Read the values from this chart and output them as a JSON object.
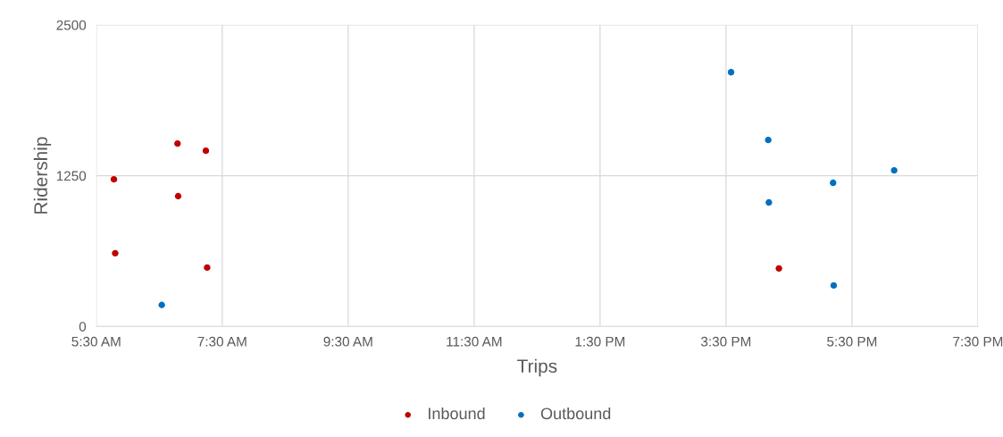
{
  "chart_data": {
    "type": "scatter",
    "xlabel": "Trips",
    "ylabel": "Ridership",
    "series": [
      {
        "name": "Inbound",
        "color": "#c00000",
        "x": [
          5.78,
          5.8,
          6.79,
          6.8,
          7.24,
          7.26,
          16.34
        ],
        "values": [
          1220,
          607,
          1516,
          1080,
          1457,
          488,
          481
        ]
      },
      {
        "name": "Outbound",
        "color": "#0070c0",
        "x": [
          6.54,
          15.58,
          16.17,
          16.18,
          17.2,
          17.21,
          18.17
        ],
        "values": [
          178,
          2108,
          1546,
          1028,
          1191,
          340,
          1294
        ]
      }
    ],
    "xlim": [
      5.5,
      19.5
    ],
    "xticks": [
      {
        "value": 5.5,
        "label": "5:30 AM"
      },
      {
        "value": 7.5,
        "label": "7:30 AM"
      },
      {
        "value": 9.5,
        "label": "9:30 AM"
      },
      {
        "value": 11.5,
        "label": "11:30 AM"
      },
      {
        "value": 13.5,
        "label": "1:30 PM"
      },
      {
        "value": 15.5,
        "label": "3:30 PM"
      },
      {
        "value": 17.5,
        "label": "5:30 PM"
      },
      {
        "value": 19.5,
        "label": "7:30 PM"
      }
    ],
    "ylim": [
      0,
      2500
    ],
    "yticks": [
      0,
      1250,
      2500
    ],
    "grid": true,
    "legend": "bottom",
    "marker": "circle"
  }
}
